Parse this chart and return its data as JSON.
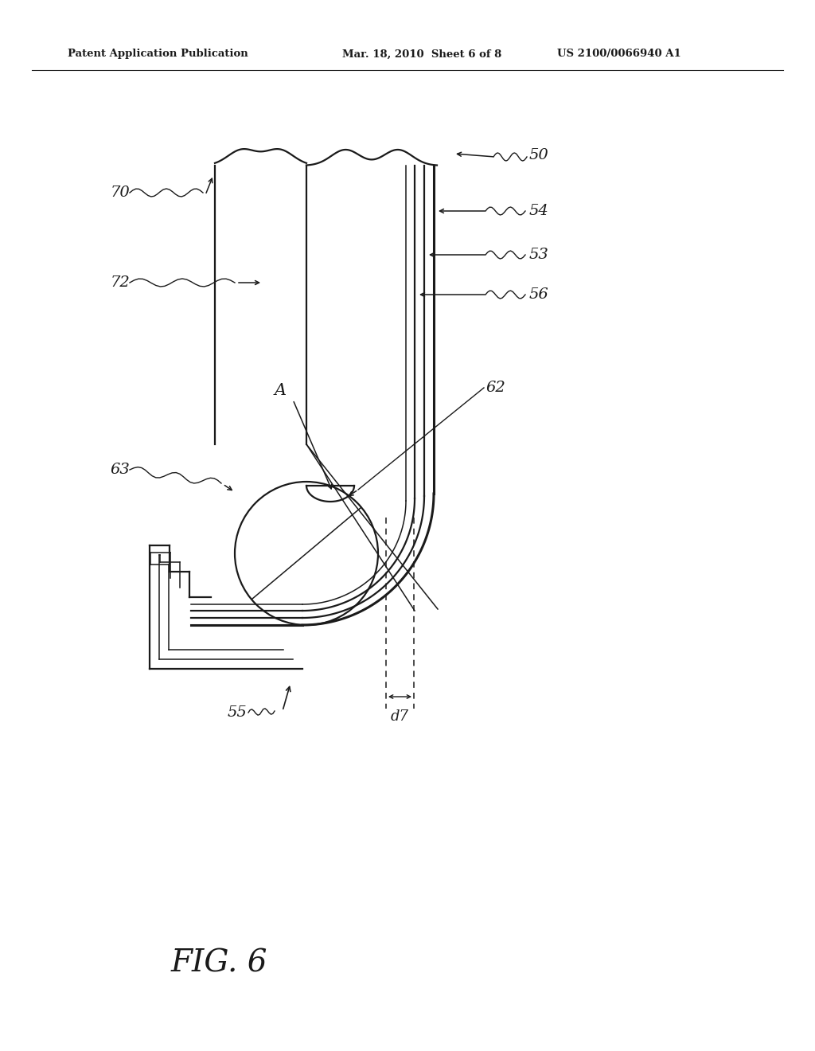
{
  "bg_color": "#ffffff",
  "line_color": "#1a1a1a",
  "header_left": "Patent Application Publication",
  "header_mid": "Mar. 18, 2010  Sheet 6 of 8",
  "header_right": "US 2100/0066940 A1",
  "figure_label": "FIG. 6",
  "lw_main": 1.6,
  "lw_thick": 2.2,
  "lw_thin": 1.1
}
